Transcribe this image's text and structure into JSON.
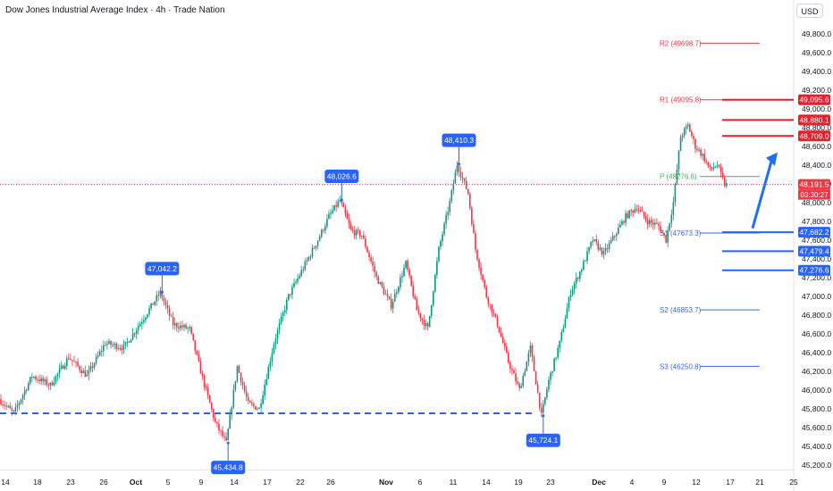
{
  "header": {
    "title": "Dow Jones Industrial Average Index · 4h · Trade Nation",
    "currency_button": "USD"
  },
  "colors": {
    "up": "#089981",
    "down": "#f23645",
    "callout": "#2962ff",
    "red_level": "#e0212e",
    "pivot_green": "#4caf50",
    "pivot_blue": "#3a66e8",
    "price_line": "#f23645",
    "arrow": "#1e6ff1"
  },
  "chart_data": {
    "type": "candlestick",
    "ylim": [
      45150,
      49950
    ],
    "y_ticks": [
      45200,
      45400,
      45600,
      45800,
      46000,
      46200,
      46400,
      46600,
      46800,
      47000,
      47200,
      47400,
      47600,
      47800,
      48000,
      48200,
      48400,
      48600,
      48800,
      49000,
      49200,
      49400,
      49600,
      49800
    ],
    "y_tick_labels": [
      "45,200.0",
      "45,400.0",
      "45,600.0",
      "45,800.0",
      "46,000.0",
      "46,200.0",
      "46,400.0",
      "46,600.0",
      "46,800.0",
      "47,000.0",
      "47,200.0",
      "47,400.0",
      "47,600.0",
      "47,800.0",
      "48,000.0",
      "48,200.0",
      "48,400.0",
      "48,600.0",
      "48,800.0",
      "49,000.0",
      "49,200.0",
      "49,400.0",
      "49,600.0",
      "49,800.0"
    ],
    "x_labels": [
      "14",
      "18",
      "23",
      "26",
      "Oct",
      "5",
      "9",
      "14",
      "17",
      "22",
      "26",
      "Nov",
      "6",
      "11",
      "14",
      "19",
      "23",
      "Dec",
      "4",
      "9",
      "12",
      "17",
      "21",
      "25"
    ],
    "x_label_bold": [
      "Oct",
      "Nov",
      "Dec"
    ],
    "price_path": [
      {
        "i": 0,
        "p": 45900
      },
      {
        "i": 8,
        "p": 45750
      },
      {
        "i": 18,
        "p": 46150
      },
      {
        "i": 28,
        "p": 46050
      },
      {
        "i": 38,
        "p": 46350
      },
      {
        "i": 48,
        "p": 46150
      },
      {
        "i": 58,
        "p": 46500
      },
      {
        "i": 68,
        "p": 46450
      },
      {
        "i": 80,
        "p": 46800
      },
      {
        "i": 88,
        "p": 47040
      },
      {
        "i": 95,
        "p": 46700
      },
      {
        "i": 104,
        "p": 46650
      },
      {
        "i": 110,
        "p": 46200
      },
      {
        "i": 118,
        "p": 45650
      },
      {
        "i": 124,
        "p": 45435
      },
      {
        "i": 130,
        "p": 46250
      },
      {
        "i": 136,
        "p": 45850
      },
      {
        "i": 142,
        "p": 45800
      },
      {
        "i": 150,
        "p": 46500
      },
      {
        "i": 158,
        "p": 47000
      },
      {
        "i": 166,
        "p": 47300
      },
      {
        "i": 174,
        "p": 47600
      },
      {
        "i": 180,
        "p": 47850
      },
      {
        "i": 186,
        "p": 48025
      },
      {
        "i": 192,
        "p": 47700
      },
      {
        "i": 198,
        "p": 47650
      },
      {
        "i": 206,
        "p": 47200
      },
      {
        "i": 214,
        "p": 46900
      },
      {
        "i": 222,
        "p": 47350
      },
      {
        "i": 228,
        "p": 46850
      },
      {
        "i": 234,
        "p": 46650
      },
      {
        "i": 240,
        "p": 47500
      },
      {
        "i": 246,
        "p": 48000
      },
      {
        "i": 250,
        "p": 48410
      },
      {
        "i": 256,
        "p": 48100
      },
      {
        "i": 260,
        "p": 47500
      },
      {
        "i": 266,
        "p": 47000
      },
      {
        "i": 272,
        "p": 46700
      },
      {
        "i": 278,
        "p": 46300
      },
      {
        "i": 284,
        "p": 46000
      },
      {
        "i": 290,
        "p": 46450
      },
      {
        "i": 296,
        "p": 45724
      },
      {
        "i": 300,
        "p": 46100
      },
      {
        "i": 306,
        "p": 46500
      },
      {
        "i": 312,
        "p": 47050
      },
      {
        "i": 318,
        "p": 47300
      },
      {
        "i": 324,
        "p": 47600
      },
      {
        "i": 330,
        "p": 47450
      },
      {
        "i": 336,
        "p": 47650
      },
      {
        "i": 342,
        "p": 47850
      },
      {
        "i": 348,
        "p": 47950
      },
      {
        "i": 354,
        "p": 47800
      },
      {
        "i": 360,
        "p": 47750
      },
      {
        "i": 364,
        "p": 47600
      },
      {
        "i": 368,
        "p": 48000
      },
      {
        "i": 372,
        "p": 48700
      },
      {
        "i": 376,
        "p": 48820
      },
      {
        "i": 380,
        "p": 48600
      },
      {
        "i": 384,
        "p": 48500
      },
      {
        "i": 388,
        "p": 48350
      },
      {
        "i": 392,
        "p": 48400
      },
      {
        "i": 396,
        "p": 48191
      }
    ],
    "callouts": [
      {
        "label": "47,042.2",
        "index": 88,
        "price": 47042.2,
        "position": "above"
      },
      {
        "label": "45,434.8",
        "index": 124,
        "price": 45434.8,
        "position": "below"
      },
      {
        "label": "48,026.6",
        "index": 186,
        "price": 48026.6,
        "position": "above"
      },
      {
        "label": "48,410.3",
        "index": 250,
        "price": 48410.3,
        "position": "above"
      },
      {
        "label": "45,724.1",
        "index": 296,
        "price": 45724.1,
        "position": "below"
      }
    ],
    "pivots": [
      {
        "label": "R2 (49698.7)",
        "price": 49698.7,
        "color": "#f23645"
      },
      {
        "label": "R1 (49095.8)",
        "price": 49095.8,
        "color": "#f23645"
      },
      {
        "label": "P (48276.6)",
        "price": 48276.6,
        "color": "#4caf50"
      },
      {
        "label": "S1 (47673.3)",
        "price": 47673.3,
        "color": "#3a66e8"
      },
      {
        "label": "S2 (46853.7)",
        "price": 46853.7,
        "color": "#3a66e8"
      },
      {
        "label": "S3 (46250.8)",
        "price": 46250.8,
        "color": "#3a66e8"
      }
    ],
    "resistance_levels": [
      49095.6,
      48880.1,
      48709.0
    ],
    "support_levels": [
      47682.2,
      47479.4,
      47276.6
    ],
    "support_dashed": 45750,
    "price_badges": [
      {
        "label": "49,095.6",
        "price": 49095.6,
        "color": "#e0212e"
      },
      {
        "label": "48,880.1",
        "price": 48880.1,
        "color": "#e0212e"
      },
      {
        "label": "48,709.0",
        "price": 48709.0,
        "color": "#e0212e"
      },
      {
        "label": "48,191.5",
        "price": 48191.5,
        "color": "#f23645"
      },
      {
        "label": "47,682.2",
        "price": 47682.2,
        "color": "#2962ff"
      },
      {
        "label": "47,479.4",
        "price": 47479.4,
        "color": "#2962ff"
      },
      {
        "label": "47,276.6",
        "price": 47276.6,
        "color": "#2962ff"
      }
    ],
    "last_price": 48191.5,
    "countdown": "03:30:27",
    "forecast_arrow": {
      "from": 47800,
      "to": 48400
    }
  }
}
